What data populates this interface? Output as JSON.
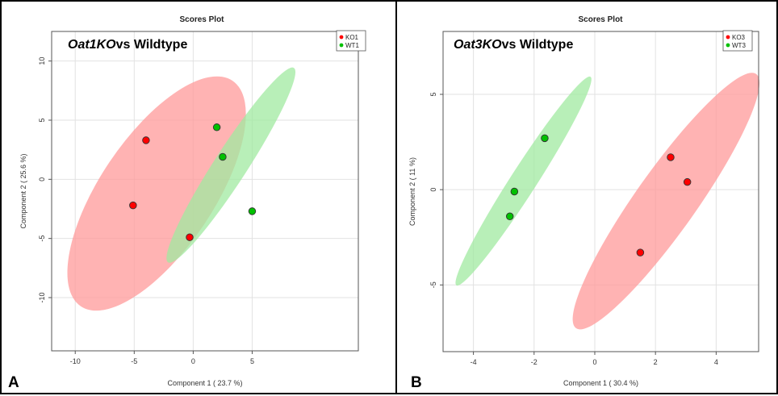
{
  "chart_data": [
    {
      "type": "scatter",
      "panel_letter": "A",
      "title": "Scores Plot",
      "subtitle_italic": "Oat1KO",
      "subtitle_rest": "vs Wildtype",
      "xlabel": "Component 1 ( 23.7 %)",
      "ylabel": "Component 2 ( 25.6 %)",
      "xlim": [
        -12,
        14
      ],
      "ylim": [
        -14.5,
        12.5
      ],
      "xticks": [
        -10,
        -5,
        0,
        5
      ],
      "yticks": [
        -10,
        -5,
        0,
        5,
        10
      ],
      "grid": true,
      "legend_position": "top-right",
      "series": [
        {
          "name": "KO1",
          "color": "#ff0000",
          "ellipse_color": "#ff9a9a",
          "points": [
            [
              -4,
              3.3
            ],
            [
              -5.1,
              -2.2
            ],
            [
              -0.3,
              -4.9
            ]
          ],
          "ellipse": {
            "cx": -3.1,
            "cy": -1.2,
            "rx": 11.5,
            "ry": 4.8,
            "angle_deg": 56
          }
        },
        {
          "name": "WT1",
          "color": "#00c000",
          "ellipse_color": "#a0eaa0",
          "points": [
            [
              2,
              4.4
            ],
            [
              2.5,
              1.9
            ],
            [
              5,
              -2.7
            ]
          ],
          "ellipse": {
            "cx": 3.2,
            "cy": 1.2,
            "rx": 9.8,
            "ry": 1.4,
            "angle_deg": 57
          }
        }
      ]
    },
    {
      "type": "scatter",
      "panel_letter": "B",
      "title": "Scores Plot",
      "subtitle_italic": "Oat3KO",
      "subtitle_rest": "vs Wildtype",
      "xlabel": "Component 1 ( 30.4 %)",
      "ylabel": "Component 2 ( 11 %)",
      "xlim": [
        -5,
        5.4
      ],
      "ylim": [
        -8.5,
        8.3
      ],
      "xticks": [
        -4,
        -2,
        0,
        2,
        4
      ],
      "yticks": [
        -5,
        0,
        5
      ],
      "grid": true,
      "legend_position": "top-right",
      "series": [
        {
          "name": "KO3",
          "color": "#ff0000",
          "ellipse_color": "#ff9a9a",
          "points": [
            [
              2.5,
              1.7
            ],
            [
              3.05,
              0.4
            ],
            [
              1.5,
              -3.3
            ]
          ],
          "ellipse": {
            "cx": 2.35,
            "cy": -0.6,
            "rx": 7.3,
            "ry": 1.05,
            "angle_deg": 66
          }
        },
        {
          "name": "WT3",
          "color": "#00c000",
          "ellipse_color": "#a0eaa0",
          "points": [
            [
              -1.65,
              2.7
            ],
            [
              -2.65,
              -0.1
            ],
            [
              -2.8,
              -1.4
            ]
          ],
          "ellipse": {
            "cx": -2.35,
            "cy": 0.45,
            "rx": 5.9,
            "ry": 0.45,
            "angle_deg": 68
          }
        }
      ]
    }
  ]
}
